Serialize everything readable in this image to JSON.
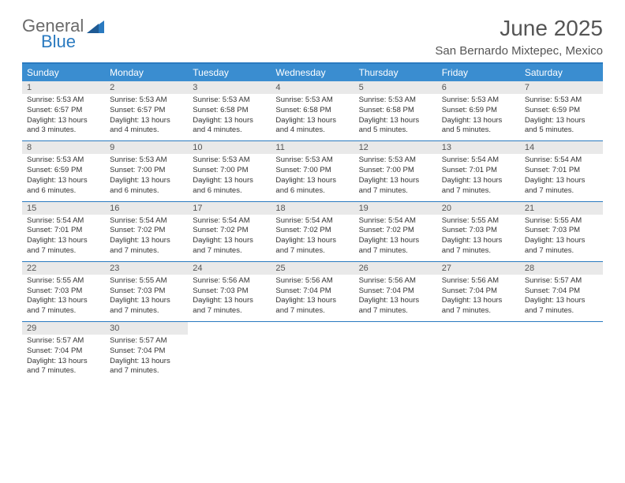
{
  "logo": {
    "text1": "General",
    "text2": "Blue"
  },
  "title": "June 2025",
  "location": "San Bernardo Mixtepec, Mexico",
  "colors": {
    "header_bar": "#3a8dd0",
    "accent_line": "#2a7ac0",
    "day_num_bg": "#e9e9e9",
    "text": "#333333",
    "muted": "#555555",
    "white": "#ffffff"
  },
  "dow": [
    "Sunday",
    "Monday",
    "Tuesday",
    "Wednesday",
    "Thursday",
    "Friday",
    "Saturday"
  ],
  "weeks": [
    [
      {
        "n": "1",
        "sr": "5:53 AM",
        "ss": "6:57 PM",
        "dl": "13 hours and 3 minutes."
      },
      {
        "n": "2",
        "sr": "5:53 AM",
        "ss": "6:57 PM",
        "dl": "13 hours and 4 minutes."
      },
      {
        "n": "3",
        "sr": "5:53 AM",
        "ss": "6:58 PM",
        "dl": "13 hours and 4 minutes."
      },
      {
        "n": "4",
        "sr": "5:53 AM",
        "ss": "6:58 PM",
        "dl": "13 hours and 4 minutes."
      },
      {
        "n": "5",
        "sr": "5:53 AM",
        "ss": "6:58 PM",
        "dl": "13 hours and 5 minutes."
      },
      {
        "n": "6",
        "sr": "5:53 AM",
        "ss": "6:59 PM",
        "dl": "13 hours and 5 minutes."
      },
      {
        "n": "7",
        "sr": "5:53 AM",
        "ss": "6:59 PM",
        "dl": "13 hours and 5 minutes."
      }
    ],
    [
      {
        "n": "8",
        "sr": "5:53 AM",
        "ss": "6:59 PM",
        "dl": "13 hours and 6 minutes."
      },
      {
        "n": "9",
        "sr": "5:53 AM",
        "ss": "7:00 PM",
        "dl": "13 hours and 6 minutes."
      },
      {
        "n": "10",
        "sr": "5:53 AM",
        "ss": "7:00 PM",
        "dl": "13 hours and 6 minutes."
      },
      {
        "n": "11",
        "sr": "5:53 AM",
        "ss": "7:00 PM",
        "dl": "13 hours and 6 minutes."
      },
      {
        "n": "12",
        "sr": "5:53 AM",
        "ss": "7:00 PM",
        "dl": "13 hours and 7 minutes."
      },
      {
        "n": "13",
        "sr": "5:54 AM",
        "ss": "7:01 PM",
        "dl": "13 hours and 7 minutes."
      },
      {
        "n": "14",
        "sr": "5:54 AM",
        "ss": "7:01 PM",
        "dl": "13 hours and 7 minutes."
      }
    ],
    [
      {
        "n": "15",
        "sr": "5:54 AM",
        "ss": "7:01 PM",
        "dl": "13 hours and 7 minutes."
      },
      {
        "n": "16",
        "sr": "5:54 AM",
        "ss": "7:02 PM",
        "dl": "13 hours and 7 minutes."
      },
      {
        "n": "17",
        "sr": "5:54 AM",
        "ss": "7:02 PM",
        "dl": "13 hours and 7 minutes."
      },
      {
        "n": "18",
        "sr": "5:54 AM",
        "ss": "7:02 PM",
        "dl": "13 hours and 7 minutes."
      },
      {
        "n": "19",
        "sr": "5:54 AM",
        "ss": "7:02 PM",
        "dl": "13 hours and 7 minutes."
      },
      {
        "n": "20",
        "sr": "5:55 AM",
        "ss": "7:03 PM",
        "dl": "13 hours and 7 minutes."
      },
      {
        "n": "21",
        "sr": "5:55 AM",
        "ss": "7:03 PM",
        "dl": "13 hours and 7 minutes."
      }
    ],
    [
      {
        "n": "22",
        "sr": "5:55 AM",
        "ss": "7:03 PM",
        "dl": "13 hours and 7 minutes."
      },
      {
        "n": "23",
        "sr": "5:55 AM",
        "ss": "7:03 PM",
        "dl": "13 hours and 7 minutes."
      },
      {
        "n": "24",
        "sr": "5:56 AM",
        "ss": "7:03 PM",
        "dl": "13 hours and 7 minutes."
      },
      {
        "n": "25",
        "sr": "5:56 AM",
        "ss": "7:04 PM",
        "dl": "13 hours and 7 minutes."
      },
      {
        "n": "26",
        "sr": "5:56 AM",
        "ss": "7:04 PM",
        "dl": "13 hours and 7 minutes."
      },
      {
        "n": "27",
        "sr": "5:56 AM",
        "ss": "7:04 PM",
        "dl": "13 hours and 7 minutes."
      },
      {
        "n": "28",
        "sr": "5:57 AM",
        "ss": "7:04 PM",
        "dl": "13 hours and 7 minutes."
      }
    ],
    [
      {
        "n": "29",
        "sr": "5:57 AM",
        "ss": "7:04 PM",
        "dl": "13 hours and 7 minutes."
      },
      {
        "n": "30",
        "sr": "5:57 AM",
        "ss": "7:04 PM",
        "dl": "13 hours and 7 minutes."
      },
      null,
      null,
      null,
      null,
      null
    ]
  ],
  "labels": {
    "sunrise": "Sunrise:",
    "sunset": "Sunset:",
    "daylight": "Daylight:"
  }
}
